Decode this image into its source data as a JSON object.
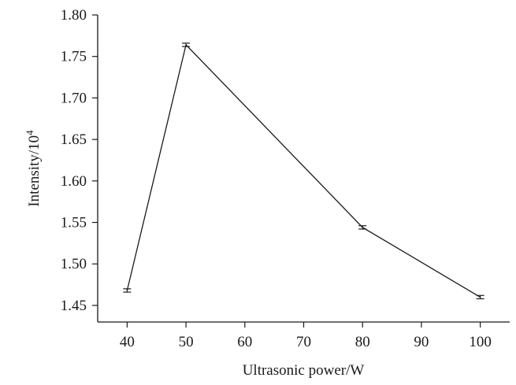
{
  "chart_data": {
    "type": "line",
    "title": "",
    "xlabel": "Ultrasonic power/W",
    "ylabel_base": "Intensity/10",
    "ylabel_exp": "4",
    "x_ticks": [
      40,
      50,
      60,
      70,
      80,
      90,
      100
    ],
    "y_ticks": [
      "1.45",
      "1.50",
      "1.55",
      "1.60",
      "1.65",
      "1.70",
      "1.75",
      "1.80"
    ],
    "xlim": [
      35,
      105
    ],
    "ylim": [
      1.43,
      1.8
    ],
    "grid": false,
    "series": [
      {
        "x": [
          40,
          50,
          80,
          100
        ],
        "y": [
          1.468,
          1.764,
          1.544,
          1.46
        ],
        "error": [
          0.002,
          0.002,
          0.002,
          0.002
        ]
      }
    ]
  }
}
